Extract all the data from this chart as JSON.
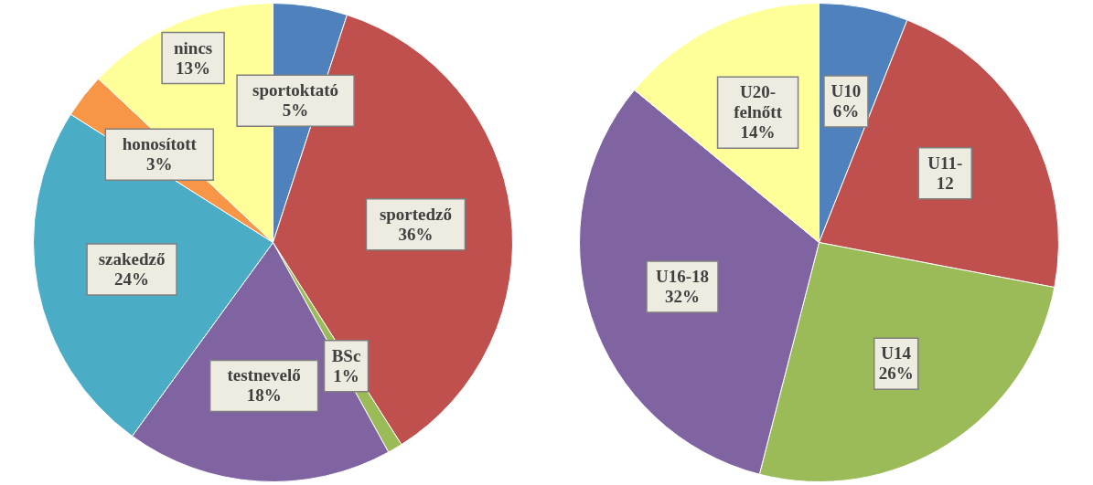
{
  "chart_data": [
    {
      "type": "pie",
      "categories": [
        "sportoktató",
        "sportedző",
        "BSc",
        "testnevelő",
        "szakedző",
        "honosított",
        "nincs"
      ],
      "values": [
        5,
        36,
        1,
        18,
        24,
        3,
        13
      ],
      "value_labels": [
        "5%",
        "36%",
        "1%",
        "18%",
        "24%",
        "3%",
        "13%"
      ],
      "colors": [
        "#4f81bd",
        "#c0504d",
        "#9bbb59",
        "#8064a2",
        "#4bacc6",
        "#f79646",
        "#ffff99"
      ],
      "legend": false
    },
    {
      "type": "pie",
      "categories": [
        "U10",
        "U11-\n12",
        "U14",
        "U16-18",
        "U20-\nfelnőtt"
      ],
      "values": [
        6,
        22,
        26,
        32,
        14
      ],
      "value_labels": [
        "6%",
        null,
        "26%",
        "32%",
        "14%"
      ],
      "colors": [
        "#4f81bd",
        "#c0504d",
        "#9bbb59",
        "#8064a2",
        "#ffff99"
      ],
      "legend": false
    }
  ]
}
